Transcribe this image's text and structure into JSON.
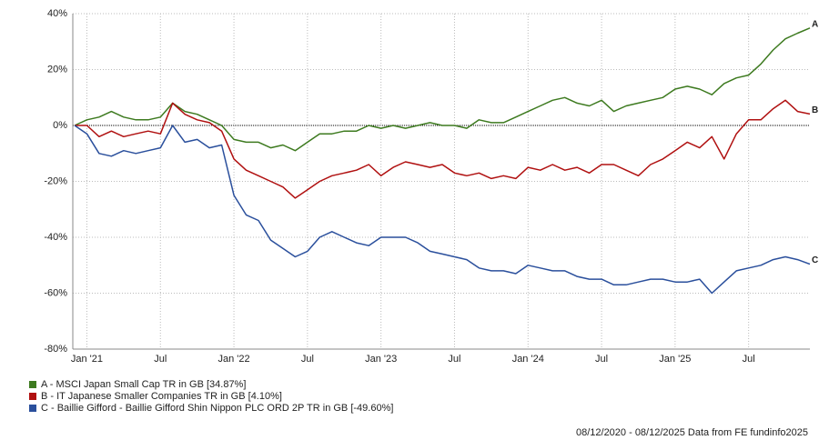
{
  "chart_data": {
    "type": "line",
    "x": [
      "2020-12",
      "2021-01",
      "2021-02",
      "2021-03",
      "2021-04",
      "2021-05",
      "2021-06",
      "2021-07",
      "2021-08",
      "2021-09",
      "2021-10",
      "2021-11",
      "2021-12",
      "2022-01",
      "2022-02",
      "2022-03",
      "2022-04",
      "2022-05",
      "2022-06",
      "2022-07",
      "2022-08",
      "2022-09",
      "2022-10",
      "2022-11",
      "2022-12",
      "2023-01",
      "2023-02",
      "2023-03",
      "2023-04",
      "2023-05",
      "2023-06",
      "2023-07",
      "2023-08",
      "2023-09",
      "2023-10",
      "2023-11",
      "2023-12",
      "2024-01",
      "2024-02",
      "2024-03",
      "2024-04",
      "2024-05",
      "2024-06",
      "2024-07",
      "2024-08",
      "2024-09",
      "2024-10",
      "2024-11",
      "2024-12",
      "2025-01",
      "2025-02",
      "2025-03",
      "2025-04",
      "2025-05",
      "2025-06",
      "2025-07",
      "2025-08",
      "2025-09",
      "2025-10",
      "2025-11",
      "2025-12"
    ],
    "series": [
      {
        "name": "A - MSCI Japan Small Cap TR in GB [34.87%]",
        "label": "A",
        "color": "#3d7a1f",
        "values": [
          0,
          2,
          3,
          5,
          3,
          2,
          2,
          3,
          8,
          5,
          4,
          2,
          0,
          -5,
          -6,
          -6,
          -8,
          -7,
          -9,
          -6,
          -3,
          -3,
          -2,
          -2,
          0,
          -1,
          0,
          -1,
          0,
          1,
          0,
          0,
          -1,
          2,
          1,
          1,
          3,
          5,
          7,
          9,
          10,
          8,
          7,
          9,
          5,
          7,
          8,
          9,
          10,
          13,
          14,
          13,
          11,
          15,
          17,
          18,
          22,
          27,
          31,
          33,
          34.87
        ]
      },
      {
        "name": "B - IT Japanese Smaller Companies TR in GB [4.10%]",
        "label": "B",
        "color": "#b01010",
        "values": [
          0,
          0,
          -4,
          -2,
          -4,
          -3,
          -2,
          -3,
          8,
          4,
          2,
          1,
          -2,
          -12,
          -16,
          -18,
          -20,
          -22,
          -26,
          -23,
          -20,
          -18,
          -17,
          -16,
          -14,
          -18,
          -15,
          -13,
          -14,
          -15,
          -14,
          -17,
          -18,
          -17,
          -19,
          -18,
          -19,
          -15,
          -16,
          -14,
          -16,
          -15,
          -17,
          -14,
          -14,
          -16,
          -18,
          -14,
          -12,
          -9,
          -6,
          -8,
          -4,
          -12,
          -3,
          2,
          2,
          6,
          9,
          5,
          4.1
        ]
      },
      {
        "name": "C - Baillie Gifford - Baillie Gifford Shin Nippon PLC ORD 2P TR in GB [-49.60%]",
        "label": "C",
        "color": "#2a4f9c",
        "values": [
          0,
          -3,
          -10,
          -11,
          -9,
          -10,
          -9,
          -8,
          0,
          -6,
          -5,
          -8,
          -7,
          -25,
          -32,
          -34,
          -41,
          -44,
          -47,
          -45,
          -40,
          -38,
          -40,
          -42,
          -43,
          -40,
          -40,
          -40,
          -42,
          -45,
          -46,
          -47,
          -48,
          -51,
          -52,
          -52,
          -53,
          -50,
          -51,
          -52,
          -52,
          -54,
          -55,
          -55,
          -57,
          -57,
          -56,
          -55,
          -55,
          -56,
          -56,
          -55,
          -60,
          -56,
          -52,
          -51,
          -50,
          -48,
          -47,
          -48,
          -49.6
        ]
      }
    ],
    "xlim": [
      "2020-12",
      "2025-12"
    ],
    "xticks": [
      {
        "value": "2021-01",
        "label": "Jan '21"
      },
      {
        "value": "2021-07",
        "label": "Jul"
      },
      {
        "value": "2022-01",
        "label": "Jan '22"
      },
      {
        "value": "2022-07",
        "label": "Jul"
      },
      {
        "value": "2023-01",
        "label": "Jan '23"
      },
      {
        "value": "2023-07",
        "label": "Jul"
      },
      {
        "value": "2024-01",
        "label": "Jan '24"
      },
      {
        "value": "2024-07",
        "label": "Jul"
      },
      {
        "value": "2025-01",
        "label": "Jan '25"
      },
      {
        "value": "2025-07",
        "label": "Jul"
      }
    ],
    "ylim": [
      -80,
      40
    ],
    "yticks": [
      {
        "value": -80,
        "label": "-80%"
      },
      {
        "value": -60,
        "label": "-60%"
      },
      {
        "value": -40,
        "label": "-40%"
      },
      {
        "value": -20,
        "label": "-20%"
      },
      {
        "value": 0,
        "label": "0%"
      },
      {
        "value": 20,
        "label": "20%"
      },
      {
        "value": 40,
        "label": "40%"
      }
    ],
    "grid": true,
    "footer": "08/12/2020 - 08/12/2025 Data from FE fundinfo2025"
  }
}
